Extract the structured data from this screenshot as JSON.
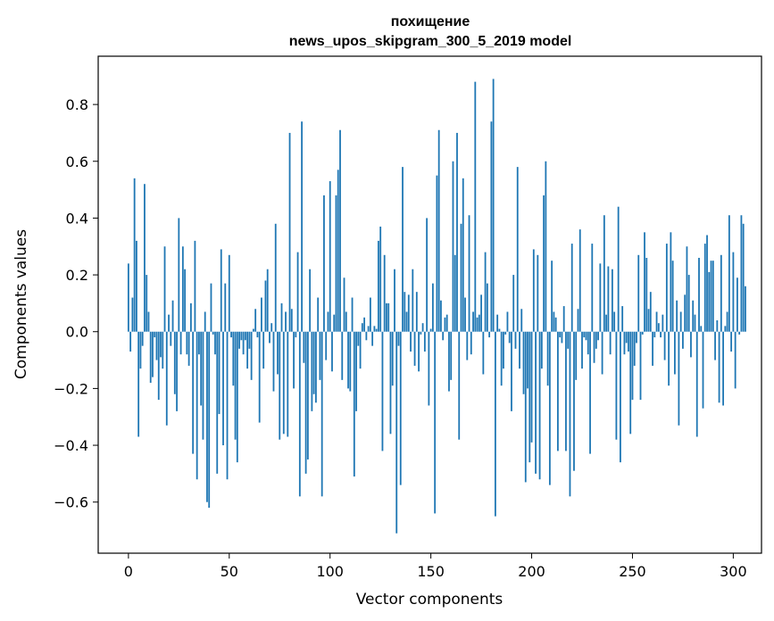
{
  "chart_data": {
    "type": "bar",
    "title_line1": "похищение",
    "title_line2": "news_upos_skipgram_300_5_2019 model",
    "xlabel": "Vector components",
    "ylabel": "Components values",
    "xlim": [
      -15,
      314
    ],
    "ylim": [
      -0.78,
      0.97
    ],
    "xticks": [
      0,
      50,
      100,
      150,
      200,
      250,
      300
    ],
    "yticks": [
      -0.6,
      -0.4,
      -0.2,
      0.0,
      0.2,
      0.4,
      0.6,
      0.8
    ],
    "xtick_labels": [
      "0",
      "50",
      "100",
      "150",
      "200",
      "250",
      "300"
    ],
    "ytick_labels": [
      "−0.6",
      "−0.4",
      "−0.2",
      "0.0",
      "0.2",
      "0.4",
      "0.6",
      "0.8"
    ],
    "bar_color": "#1f77b4",
    "values": [
      0.24,
      -0.07,
      0.12,
      0.54,
      0.32,
      -0.37,
      -0.13,
      -0.05,
      0.52,
      0.2,
      0.07,
      -0.18,
      -0.16,
      -0.02,
      -0.1,
      -0.24,
      -0.09,
      -0.13,
      0.3,
      -0.33,
      0.06,
      -0.05,
      0.11,
      -0.22,
      -0.28,
      0.4,
      -0.08,
      0.3,
      0.22,
      -0.08,
      -0.12,
      0.1,
      -0.43,
      0.32,
      -0.52,
      -0.08,
      -0.26,
      -0.38,
      0.07,
      -0.6,
      -0.62,
      0.17,
      -0.01,
      -0.08,
      -0.5,
      -0.29,
      0.29,
      -0.4,
      0.17,
      -0.52,
      0.27,
      -0.02,
      -0.19,
      -0.38,
      -0.46,
      -0.06,
      -0.03,
      -0.08,
      -0.03,
      -0.13,
      -0.06,
      -0.17,
      0.01,
      0.08,
      -0.02,
      -0.32,
      0.12,
      -0.13,
      0.18,
      0.22,
      -0.04,
      0.03,
      -0.21,
      0.38,
      -0.15,
      -0.38,
      0.1,
      -0.36,
      0.07,
      -0.37,
      0.7,
      0.08,
      -0.2,
      -0.02,
      0.28,
      -0.58,
      0.74,
      -0.11,
      -0.5,
      -0.45,
      0.22,
      -0.28,
      -0.22,
      -0.25,
      0.12,
      -0.17,
      -0.58,
      0.48,
      -0.1,
      0.07,
      0.53,
      -0.14,
      0.06,
      0.48,
      0.57,
      0.71,
      -0.17,
      0.19,
      0.07,
      -0.2,
      -0.21,
      0.12,
      -0.51,
      -0.28,
      -0.05,
      -0.13,
      0.03,
      0.05,
      -0.03,
      0.02,
      0.12,
      -0.05,
      0.02,
      0.01,
      0.32,
      0.37,
      -0.42,
      0.27,
      0.1,
      0.1,
      -0.36,
      -0.19,
      0.22,
      -0.71,
      -0.05,
      -0.54,
      0.58,
      0.14,
      0.07,
      0.13,
      -0.07,
      0.22,
      -0.12,
      0.14,
      -0.14,
      -0.01,
      0.03,
      -0.07,
      0.4,
      -0.26,
      0.01,
      0.17,
      -0.64,
      0.55,
      0.71,
      0.11,
      -0.03,
      0.05,
      0.06,
      -0.21,
      -0.17,
      0.6,
      0.27,
      0.7,
      -0.38,
      0.38,
      0.54,
      0.12,
      -0.1,
      0.41,
      -0.08,
      0.07,
      0.88,
      0.05,
      0.06,
      0.13,
      -0.15,
      0.28,
      0.17,
      -0.02,
      0.74,
      0.89,
      -0.65,
      0.06,
      0.01,
      -0.19,
      -0.13,
      -0.01,
      0.07,
      -0.04,
      -0.28,
      0.2,
      -0.06,
      0.58,
      -0.13,
      0.08,
      -0.22,
      -0.53,
      -0.2,
      -0.46,
      -0.39,
      0.29,
      -0.5,
      0.27,
      -0.52,
      -0.13,
      0.48,
      0.6,
      -0.19,
      -0.54,
      0.25,
      0.07,
      0.05,
      -0.42,
      -0.02,
      -0.04,
      0.09,
      -0.42,
      -0.06,
      -0.58,
      0.31,
      -0.49,
      -0.17,
      0.08,
      0.36,
      -0.13,
      -0.02,
      -0.03,
      -0.08,
      -0.43,
      0.31,
      -0.11,
      -0.06,
      -0.03,
      0.24,
      -0.15,
      0.41,
      0.06,
      0.23,
      -0.08,
      0.22,
      0.07,
      -0.38,
      0.44,
      -0.46,
      0.09,
      -0.08,
      -0.04,
      -0.07,
      -0.36,
      -0.24,
      -0.12,
      -0.04,
      0.27,
      -0.24,
      -0.01,
      0.35,
      0.26,
      0.08,
      0.14,
      -0.12,
      -0.02,
      0.07,
      0.03,
      -0.02,
      0.06,
      -0.1,
      0.31,
      -0.19,
      0.35,
      0.25,
      -0.15,
      0.11,
      -0.33,
      0.07,
      -0.06,
      0.13,
      0.3,
      0.2,
      -0.09,
      0.11,
      0.06,
      -0.37,
      0.26,
      0.02,
      -0.27,
      0.31,
      0.34,
      0.21,
      0.25,
      0.25,
      -0.1,
      0.04,
      -0.25,
      0.27,
      -0.26,
      0.02,
      0.07,
      0.41,
      -0.07,
      0.28,
      -0.2,
      0.19,
      -0.01,
      0.41,
      0.38,
      0.16
    ]
  }
}
